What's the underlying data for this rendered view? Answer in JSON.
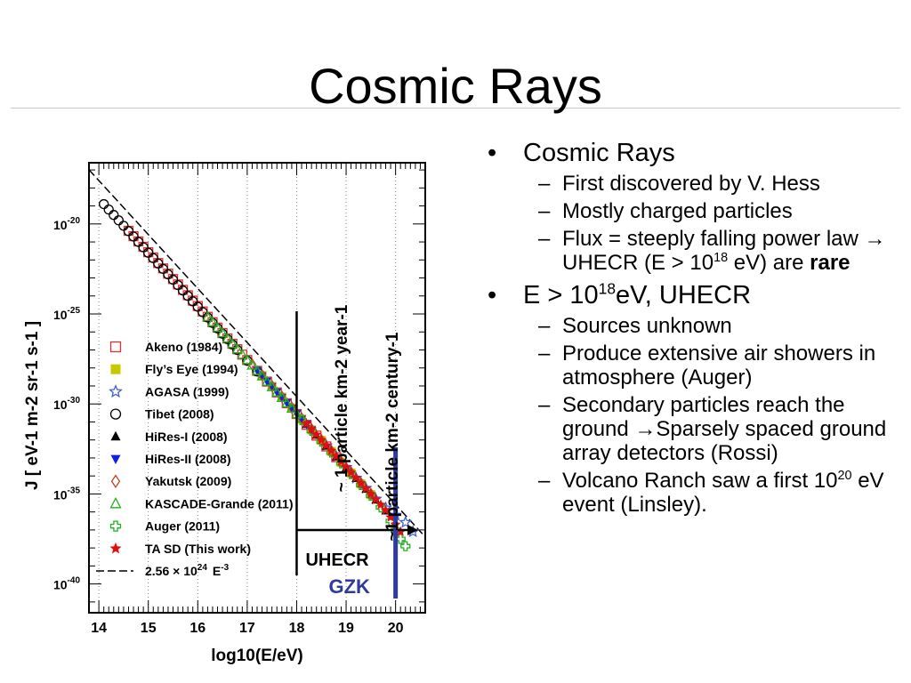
{
  "slide": {
    "title": "Cosmic Rays",
    "bullets": [
      {
        "text": "Cosmic Rays",
        "subs": [
          {
            "text": "First discovered by V. Hess"
          },
          {
            "text": "Mostly charged particles"
          },
          {
            "pre": "Flux = steeply falling power law ",
            "arrow": "→",
            "mid": " UHECR (E > 10",
            "sup": "18",
            "post": " eV) are ",
            "bold": "rare"
          }
        ]
      },
      {
        "pre": "E > 10",
        "sup": "18",
        "post": "eV, UHECR",
        "subs": [
          {
            "text": "Sources unknown"
          },
          {
            "text": "Produce extensive air showers in atmosphere (Auger)"
          },
          {
            "pre": "Secondary particles reach the ground ",
            "arrow": "→",
            "post": "Sparsely spaced ground array detectors (Rossi)"
          },
          {
            "pre": "Volcano Ranch saw a first 10",
            "sup": "20",
            "post": " eV event (Linsley)."
          }
        ]
      }
    ]
  },
  "chart_data": {
    "type": "scatter",
    "xlabel": "log10(E/eV)",
    "ylabel": "J  [ eV-1 m-2 sr-1 s-1 ]",
    "x_ticks": [
      14,
      15,
      16,
      17,
      18,
      19,
      20
    ],
    "y_tick_exponents": [
      -20,
      -25,
      -30,
      -35,
      -40
    ],
    "xlim": [
      13.8,
      20.6
    ],
    "ylim_log10": [
      -41.6,
      -16.6
    ],
    "fit_label": "2.56 × 10",
    "fit_label_sup": "24",
    "fit_label_tail": "E",
    "fit_label_tail_sup": "-3",
    "fit_line": {
      "points": [
        [
          13.8,
          -16.99
        ],
        [
          20.6,
          -37.39
        ]
      ]
    },
    "annotations": {
      "year_label": "~ 1 particle km-2 year-1",
      "century_label": "~1 particle km-2 century-1",
      "uhecr_label": "UHECR",
      "gzk_label": "GZK",
      "uhecr_x": 18.0,
      "gzk_x": 20.0,
      "colors": {
        "gzk": "#2e3a9e",
        "line": "#000000"
      }
    },
    "series": [
      {
        "name": "Akeno (1984)",
        "marker": "square-open",
        "color": "#e03030",
        "x": [
          14.6,
          14.7,
          14.8,
          14.9,
          15.0,
          15.1,
          15.2,
          15.3,
          15.4,
          15.5,
          15.6,
          15.7,
          15.8,
          15.9,
          16.0,
          16.1,
          16.2,
          16.3,
          16.4,
          16.5,
          16.6,
          16.7,
          16.8,
          16.9,
          17.0,
          17.2,
          17.4,
          17.6,
          17.8,
          18.0,
          18.2,
          18.4,
          18.6,
          18.8
        ],
        "y": [
          -20.38,
          -20.68,
          -20.97,
          -21.27,
          -21.57,
          -21.86,
          -22.17,
          -22.47,
          -22.76,
          -23.06,
          -23.36,
          -23.66,
          -23.96,
          -24.26,
          -24.56,
          -24.86,
          -25.16,
          -25.46,
          -25.76,
          -26.06,
          -26.36,
          -26.66,
          -26.96,
          -27.26,
          -27.56,
          -28.16,
          -28.76,
          -29.36,
          -29.96,
          -30.56,
          -31.16,
          -31.76,
          -32.36,
          -32.96
        ]
      },
      {
        "name": "Fly’s Eye (1994)",
        "marker": "square-filled",
        "color": "#c8c800",
        "x": [
          17.3,
          17.5,
          17.7,
          17.9,
          18.1,
          18.3,
          18.5,
          18.7,
          18.9,
          19.1,
          19.3,
          19.5
        ],
        "y": [
          -28.42,
          -29.02,
          -29.62,
          -30.22,
          -30.84,
          -31.44,
          -32.02,
          -32.64,
          -33.24,
          -33.84,
          -34.44,
          -35.04
        ]
      },
      {
        "name": "AGASA (1999)",
        "marker": "star-open",
        "color": "#4060d0",
        "x": [
          18.6,
          18.8,
          19.0,
          19.2,
          19.4,
          19.6,
          19.8,
          20.0,
          20.2,
          20.35
        ],
        "y": [
          -32.32,
          -32.92,
          -33.52,
          -34.12,
          -34.68,
          -35.28,
          -35.78,
          -36.18,
          -36.58,
          -37.1
        ]
      },
      {
        "name": "Tibet (2008)",
        "marker": "circle-open",
        "color": "#000000",
        "x": [
          14.1,
          14.2,
          14.3,
          14.4,
          14.5,
          14.6,
          14.7,
          14.8,
          14.9,
          15.0,
          15.1,
          15.2,
          15.3,
          15.4,
          15.5,
          15.6,
          15.7,
          15.8,
          15.9,
          16.0,
          16.1,
          16.2,
          16.3,
          16.4,
          16.5,
          16.6,
          16.7,
          16.8,
          17.0,
          17.2
        ],
        "y": [
          -18.9,
          -19.2,
          -19.5,
          -19.8,
          -20.1,
          -20.4,
          -20.7,
          -21.0,
          -21.3,
          -21.6,
          -21.9,
          -22.2,
          -22.5,
          -22.8,
          -23.1,
          -23.4,
          -23.7,
          -24.0,
          -24.3,
          -24.6,
          -24.9,
          -25.2,
          -25.5,
          -25.8,
          -26.1,
          -26.4,
          -26.7,
          -27.0,
          -27.6,
          -28.2
        ]
      },
      {
        "name": "HiRes-I (2008)",
        "marker": "triangle-up",
        "color": "#000000",
        "x": [
          18.2,
          18.4,
          18.6,
          18.8,
          19.0,
          19.2,
          19.4,
          19.6,
          19.8
        ],
        "y": [
          -31.14,
          -31.74,
          -32.34,
          -32.94,
          -33.54,
          -34.14,
          -34.74,
          -35.34,
          -35.94
        ]
      },
      {
        "name": "HiRes-II (2008)",
        "marker": "triangle-down",
        "color": "#1020e0",
        "x": [
          17.2,
          17.3,
          17.4,
          17.5,
          17.6,
          17.7,
          17.8,
          17.9,
          18.0,
          18.1,
          18.2,
          18.3
        ],
        "y": [
          -28.14,
          -28.44,
          -28.74,
          -29.04,
          -29.34,
          -29.64,
          -29.94,
          -30.24,
          -30.54,
          -30.84,
          -31.14,
          -31.44
        ]
      },
      {
        "name": "Yakutsk (2009)",
        "marker": "diamond-open",
        "color": "#c84020",
        "x": [
          17.1,
          17.3,
          17.5,
          17.7,
          17.9,
          18.1,
          18.3,
          18.5,
          18.7,
          18.9,
          19.1,
          19.3,
          19.5
        ],
        "y": [
          -27.8,
          -28.4,
          -29.0,
          -29.6,
          -30.2,
          -30.8,
          -31.4,
          -32.0,
          -32.6,
          -33.2,
          -33.8,
          -34.4,
          -35.0
        ]
      },
      {
        "name": "KASCADE-Grande (2011)",
        "marker": "triangle-open",
        "color": "#20b020",
        "x": [
          16.2,
          16.3,
          16.4,
          16.5,
          16.6,
          16.7,
          16.8,
          16.9,
          17.0,
          17.1,
          17.2,
          17.3,
          17.4,
          17.5,
          17.6,
          17.7,
          17.8,
          17.9,
          18.0
        ],
        "y": [
          -25.16,
          -25.46,
          -25.76,
          -26.06,
          -26.36,
          -26.66,
          -26.96,
          -27.26,
          -27.56,
          -27.86,
          -28.16,
          -28.46,
          -28.76,
          -29.06,
          -29.36,
          -29.66,
          -29.96,
          -30.26,
          -30.56
        ]
      },
      {
        "name": "Auger (2011)",
        "marker": "cross-open",
        "color": "#20b020",
        "x": [
          18.1,
          18.3,
          18.5,
          18.7,
          18.9,
          19.1,
          19.3,
          19.5,
          19.7,
          19.9,
          20.0,
          20.1,
          20.2
        ],
        "y": [
          -30.9,
          -31.5,
          -32.1,
          -32.7,
          -33.3,
          -33.9,
          -34.5,
          -35.1,
          -35.75,
          -36.5,
          -37.0,
          -37.5,
          -37.9
        ]
      },
      {
        "name": "TA SD (This work)",
        "marker": "star-filled",
        "color": "#e01010",
        "x": [
          18.2,
          18.3,
          18.4,
          18.5,
          18.6,
          18.7,
          18.8,
          18.9,
          19.0,
          19.1,
          19.2,
          19.3,
          19.4,
          19.5,
          19.6,
          19.7,
          19.8,
          19.9,
          20.0,
          20.1
        ],
        "y": [
          -31.1,
          -31.4,
          -31.7,
          -32.0,
          -32.3,
          -32.6,
          -32.9,
          -33.2,
          -33.5,
          -33.8,
          -34.1,
          -34.4,
          -34.7,
          -35.0,
          -35.3,
          -35.6,
          -35.9,
          -36.3,
          -36.7,
          -37.1
        ]
      }
    ]
  }
}
